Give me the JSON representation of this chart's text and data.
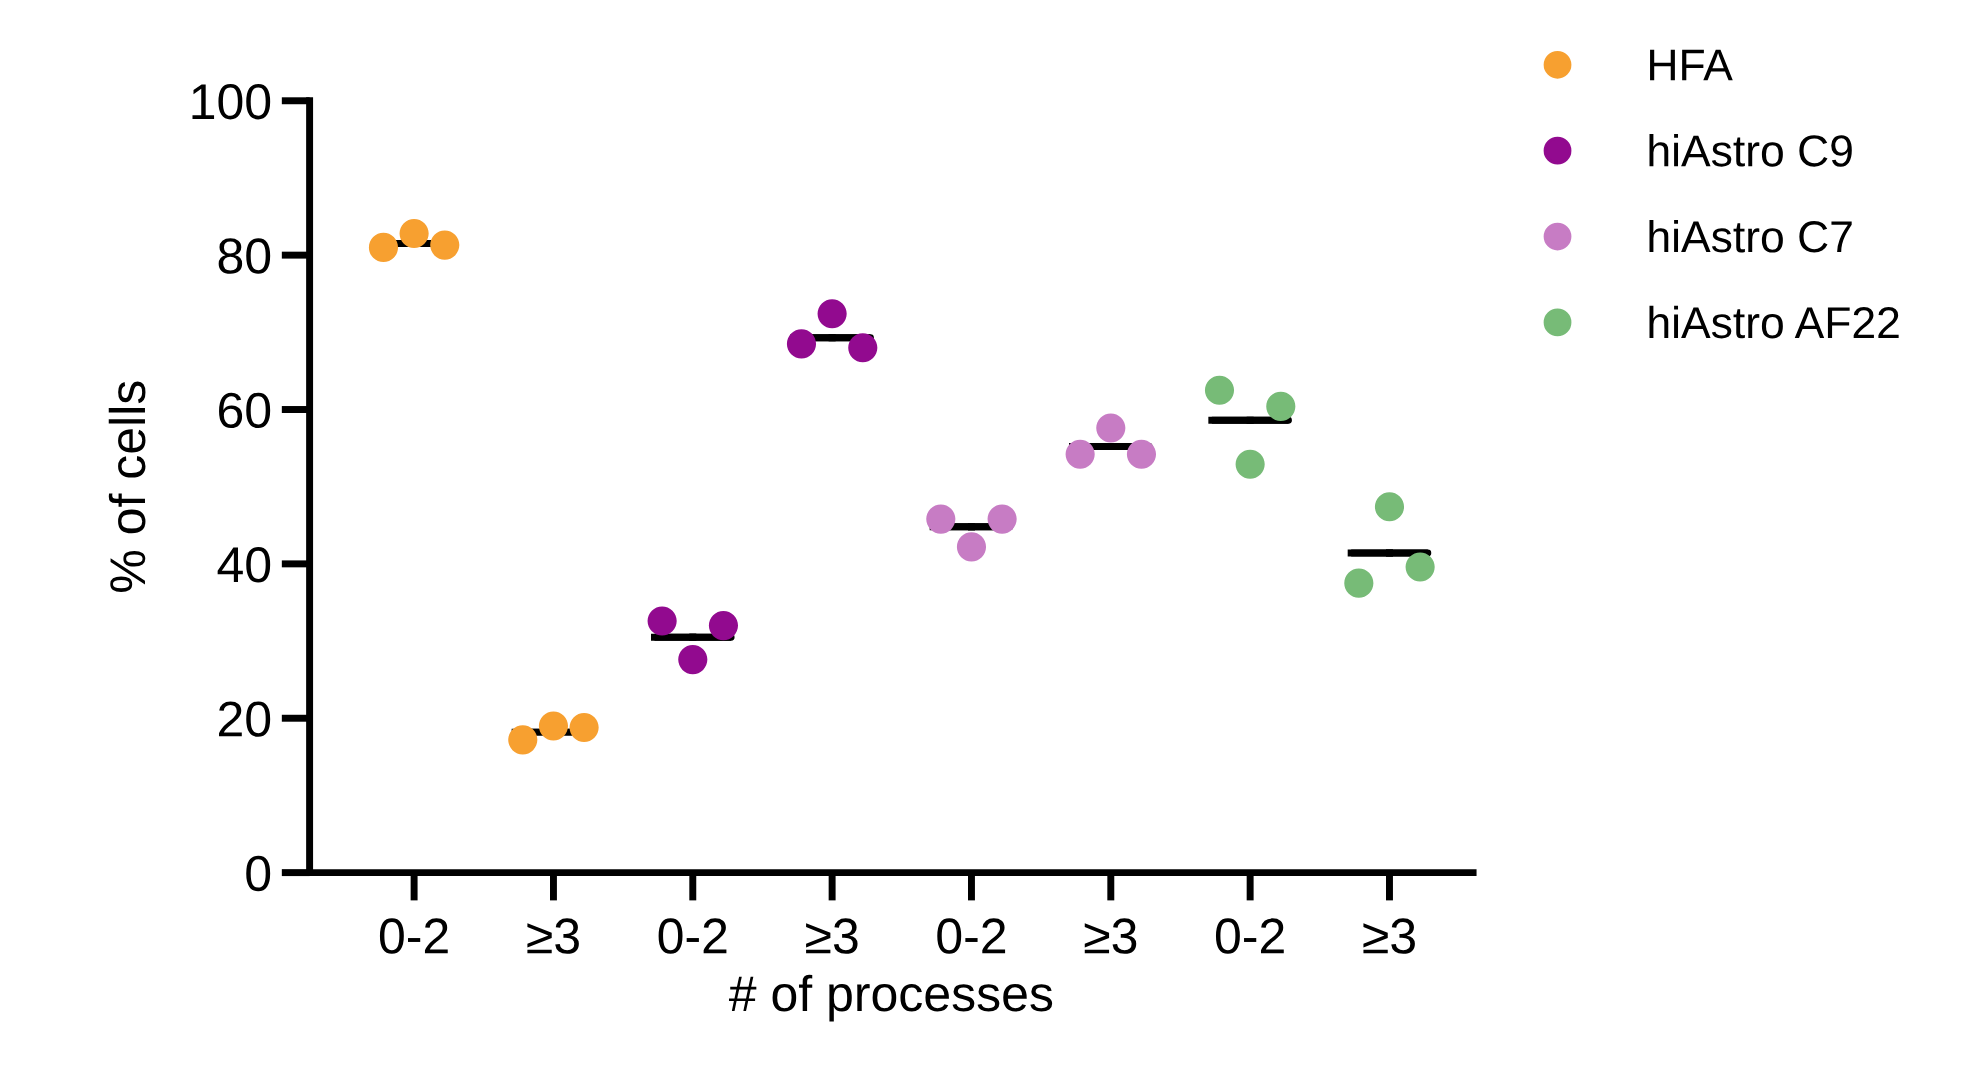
{
  "chart_data": {
    "type": "scatter",
    "xlabel": "# of processes",
    "ylabel": "% of cells",
    "categories": [
      "0-2",
      "≥3",
      "0-2",
      "≥3",
      "0-2",
      "≥3",
      "0-2",
      "≥3"
    ],
    "ylim": [
      0,
      100
    ],
    "yticks": [
      0,
      20,
      40,
      60,
      80,
      100
    ],
    "grid": false,
    "legend": "top right",
    "marker": "circle",
    "series": [
      {
        "name": "HFA",
        "color": "#f7a030",
        "values": [
          81.0,
          17.2,
          null,
          null,
          null,
          null,
          null,
          null
        ]
      },
      {
        "color": "#f7a030",
        "values": [
          82.8,
          19.0,
          null,
          null,
          null,
          null,
          null,
          null
        ]
      },
      {
        "color": "#f7a030",
        "values": [
          81.3,
          18.8,
          null,
          null,
          null,
          null,
          null,
          null
        ]
      },
      {
        "name": "hiAstro C9",
        "color": "#920a8f",
        "values": [
          null,
          null,
          32.6,
          68.5,
          null,
          null,
          null,
          null
        ]
      },
      {
        "color": "#920a8f",
        "values": [
          null,
          null,
          27.6,
          72.4,
          null,
          null,
          null,
          null
        ]
      },
      {
        "color": "#920a8f",
        "values": [
          null,
          null,
          32.0,
          68.0,
          null,
          null,
          null,
          null
        ]
      },
      {
        "name": "hiAstro C7",
        "color": "#c77cc4",
        "values": [
          null,
          null,
          null,
          null,
          45.8,
          54.2,
          null,
          null
        ]
      },
      {
        "color": "#c77cc4",
        "values": [
          null,
          null,
          null,
          null,
          42.2,
          57.6,
          null,
          null
        ]
      },
      {
        "color": "#c77cc4",
        "values": [
          null,
          null,
          null,
          null,
          45.8,
          54.2,
          null,
          null
        ]
      },
      {
        "name": "hiAstro AF22",
        "color": "#77bb77",
        "values": [
          null,
          null,
          null,
          null,
          null,
          null,
          62.5,
          37.5
        ]
      },
      {
        "color": "#77bb77",
        "values": [
          null,
          null,
          null,
          null,
          null,
          null,
          52.9,
          47.4
        ]
      },
      {
        "color": "#77bb77",
        "values": [
          null,
          null,
          null,
          null,
          null,
          null,
          60.4,
          39.6
        ]
      },
      {
        "type": "box",
        "color": "#000000",
        "boxes": [
          {
            "low": 81.5,
            "q1": 81.5,
            "median": 81.5,
            "q3": 81.5,
            "high": 81.5
          },
          {
            "low": 18.2,
            "q1": 18.2,
            "median": 18.2,
            "q3": 18.2,
            "high": 18.2
          },
          {
            "low": 30.5,
            "q1": 30.5,
            "median": 30.5,
            "q3": 30.5,
            "high": 30.5
          },
          {
            "low": 69.3,
            "q1": 69.3,
            "median": 69.3,
            "q3": 69.3,
            "high": 69.3
          },
          {
            "low": 44.8,
            "q1": 44.8,
            "median": 44.8,
            "q3": 44.8,
            "high": 44.8
          },
          {
            "low": 55.2,
            "q1": 55.2,
            "median": 55.2,
            "q3": 55.2,
            "high": 55.2
          },
          {
            "low": 58.6,
            "q1": 58.6,
            "median": 58.6,
            "q3": 58.6,
            "high": 58.6
          },
          {
            "low": 41.4,
            "q1": 41.4,
            "median": 41.4,
            "q3": 41.4,
            "high": 41.4
          }
        ]
      }
    ]
  }
}
